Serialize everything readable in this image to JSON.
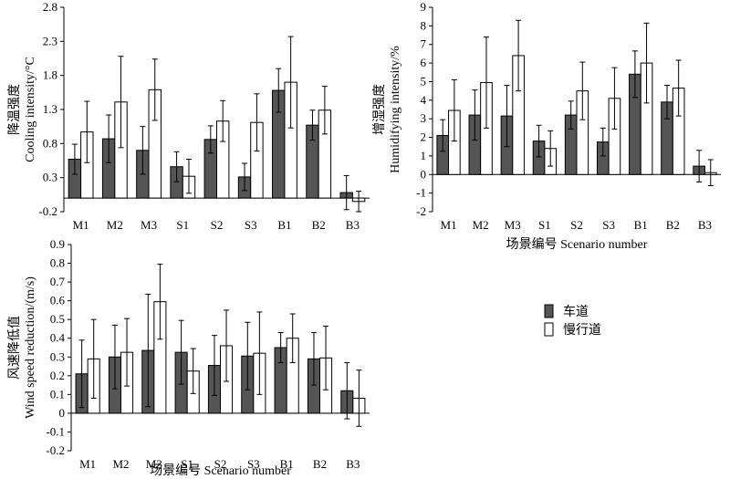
{
  "legend": {
    "items": [
      {
        "label": "车道",
        "color": "#555555"
      },
      {
        "label": "慢行道",
        "color": "#ffffff"
      }
    ],
    "placement": "right-middle"
  },
  "chart_data": [
    {
      "type": "bar",
      "categories": [
        "M1",
        "M2",
        "M3",
        "S1",
        "S2",
        "S3",
        "B1",
        "B2",
        "B3"
      ],
      "ylabel_cn": "降温强度",
      "ylabel": "Cooling intensity/°C",
      "xlabel": "",
      "ylim": [
        -0.2,
        2.8
      ],
      "yticks": [
        "-0.2",
        "0.3",
        "0.8",
        "1.3",
        "1.8",
        "2.3",
        "2.8"
      ],
      "grid": false,
      "series": [
        {
          "name": "车道",
          "values": [
            0.57,
            0.87,
            0.7,
            0.46,
            0.86,
            0.31,
            1.58,
            1.07,
            0.08
          ],
          "errors": [
            0.22,
            0.35,
            0.35,
            0.22,
            0.2,
            0.2,
            0.32,
            0.22,
            0.25
          ]
        },
        {
          "name": "慢行道",
          "values": [
            0.97,
            1.41,
            1.59,
            0.32,
            1.13,
            1.11,
            1.7,
            1.29,
            -0.05
          ],
          "errors": [
            0.45,
            0.67,
            0.45,
            0.25,
            0.3,
            0.42,
            0.67,
            0.35,
            0.15
          ]
        }
      ]
    },
    {
      "type": "bar",
      "categories": [
        "M1",
        "M2",
        "M3",
        "S1",
        "S2",
        "S3",
        "B1",
        "B2",
        "B3"
      ],
      "ylabel_cn": "增湿强度",
      "ylabel": "Humidifying intensity/%",
      "xlabel": "场景编号 Scenario number",
      "ylim": [
        -2,
        9
      ],
      "yticks": [
        "-2",
        "-1",
        "0",
        "1",
        "2",
        "3",
        "4",
        "5",
        "6",
        "7",
        "8",
        "9"
      ],
      "grid": false,
      "series": [
        {
          "name": "车道",
          "values": [
            2.1,
            3.2,
            3.15,
            1.8,
            3.2,
            1.75,
            5.4,
            3.9,
            0.45
          ],
          "errors": [
            0.85,
            1.35,
            1.65,
            0.85,
            0.75,
            0.75,
            1.25,
            0.9,
            0.85
          ]
        },
        {
          "name": "慢行道",
          "values": [
            3.45,
            4.95,
            6.4,
            1.4,
            4.5,
            4.1,
            6.0,
            4.65,
            0.1
          ],
          "errors": [
            1.65,
            2.45,
            1.9,
            0.95,
            1.55,
            1.65,
            2.15,
            1.5,
            0.7
          ]
        }
      ]
    },
    {
      "type": "bar",
      "categories": [
        "M1",
        "M2",
        "M3",
        "S1",
        "S2",
        "S3",
        "B1",
        "B2",
        "B3"
      ],
      "ylabel_cn": "风速降低值",
      "ylabel": "Wind speed reduction/(m/s)",
      "xlabel": "场景编号 Scenario number",
      "ylim": [
        -0.2,
        0.9
      ],
      "yticks": [
        "-0.2",
        "-0.1",
        "0",
        "0.1",
        "0.2",
        "0.3",
        "0.4",
        "0.5",
        "0.6",
        "0.7",
        "0.8",
        "0.9"
      ],
      "grid": false,
      "series": [
        {
          "name": "车道",
          "values": [
            0.21,
            0.3,
            0.335,
            0.325,
            0.255,
            0.305,
            0.35,
            0.29,
            0.12
          ],
          "errors": [
            0.18,
            0.17,
            0.3,
            0.17,
            0.16,
            0.18,
            0.08,
            0.14,
            0.15
          ]
        },
        {
          "name": "慢行道",
          "values": [
            0.29,
            0.325,
            0.595,
            0.225,
            0.36,
            0.32,
            0.4,
            0.295,
            0.08
          ],
          "errors": [
            0.21,
            0.18,
            0.2,
            0.12,
            0.19,
            0.22,
            0.13,
            0.17,
            0.15
          ]
        }
      ]
    }
  ]
}
